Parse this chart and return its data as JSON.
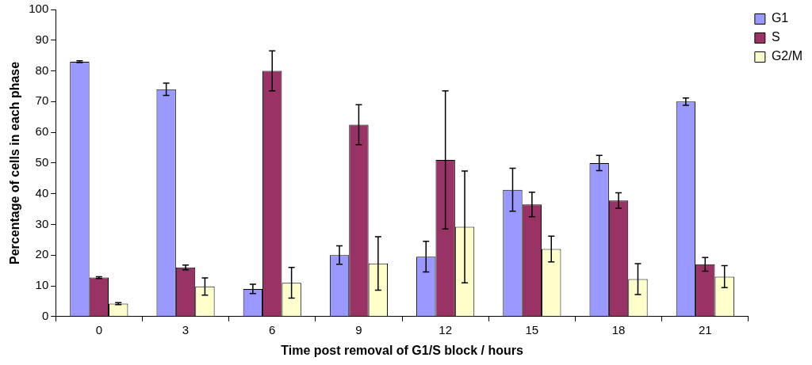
{
  "chart_data": {
    "type": "bar",
    "xlabel": "Time post removal of G1/S block / hours",
    "ylabel": "Percentage of cells in each phase",
    "categories": [
      "0",
      "3",
      "6",
      "9",
      "12",
      "15",
      "18",
      "21"
    ],
    "series": [
      {
        "name": "G1",
        "color": "#9999ff",
        "values": [
          83,
          74,
          9,
          20,
          19.5,
          41.3,
          50,
          70
        ],
        "errors": [
          0.3,
          2,
          1.5,
          3,
          5,
          7,
          2.5,
          1.2
        ]
      },
      {
        "name": "S",
        "color": "#993366",
        "values": [
          12.7,
          16,
          80,
          62.5,
          51,
          36.5,
          37.8,
          17
        ],
        "errors": [
          0.3,
          0.8,
          6.5,
          6.5,
          22.5,
          4,
          2.5,
          2.2
        ]
      },
      {
        "name": "G2/M",
        "color": "#ffffcc",
        "values": [
          4.2,
          9.8,
          11,
          17.3,
          29.2,
          22,
          12.2,
          13
        ],
        "errors": [
          0.3,
          2.8,
          5,
          8.7,
          18.2,
          4.2,
          5,
          3.6
        ]
      }
    ],
    "ylim": [
      0,
      100
    ],
    "yticks": [
      0,
      10,
      20,
      30,
      40,
      50,
      60,
      70,
      80,
      90,
      100
    ],
    "grid": false,
    "legend": "top right"
  }
}
